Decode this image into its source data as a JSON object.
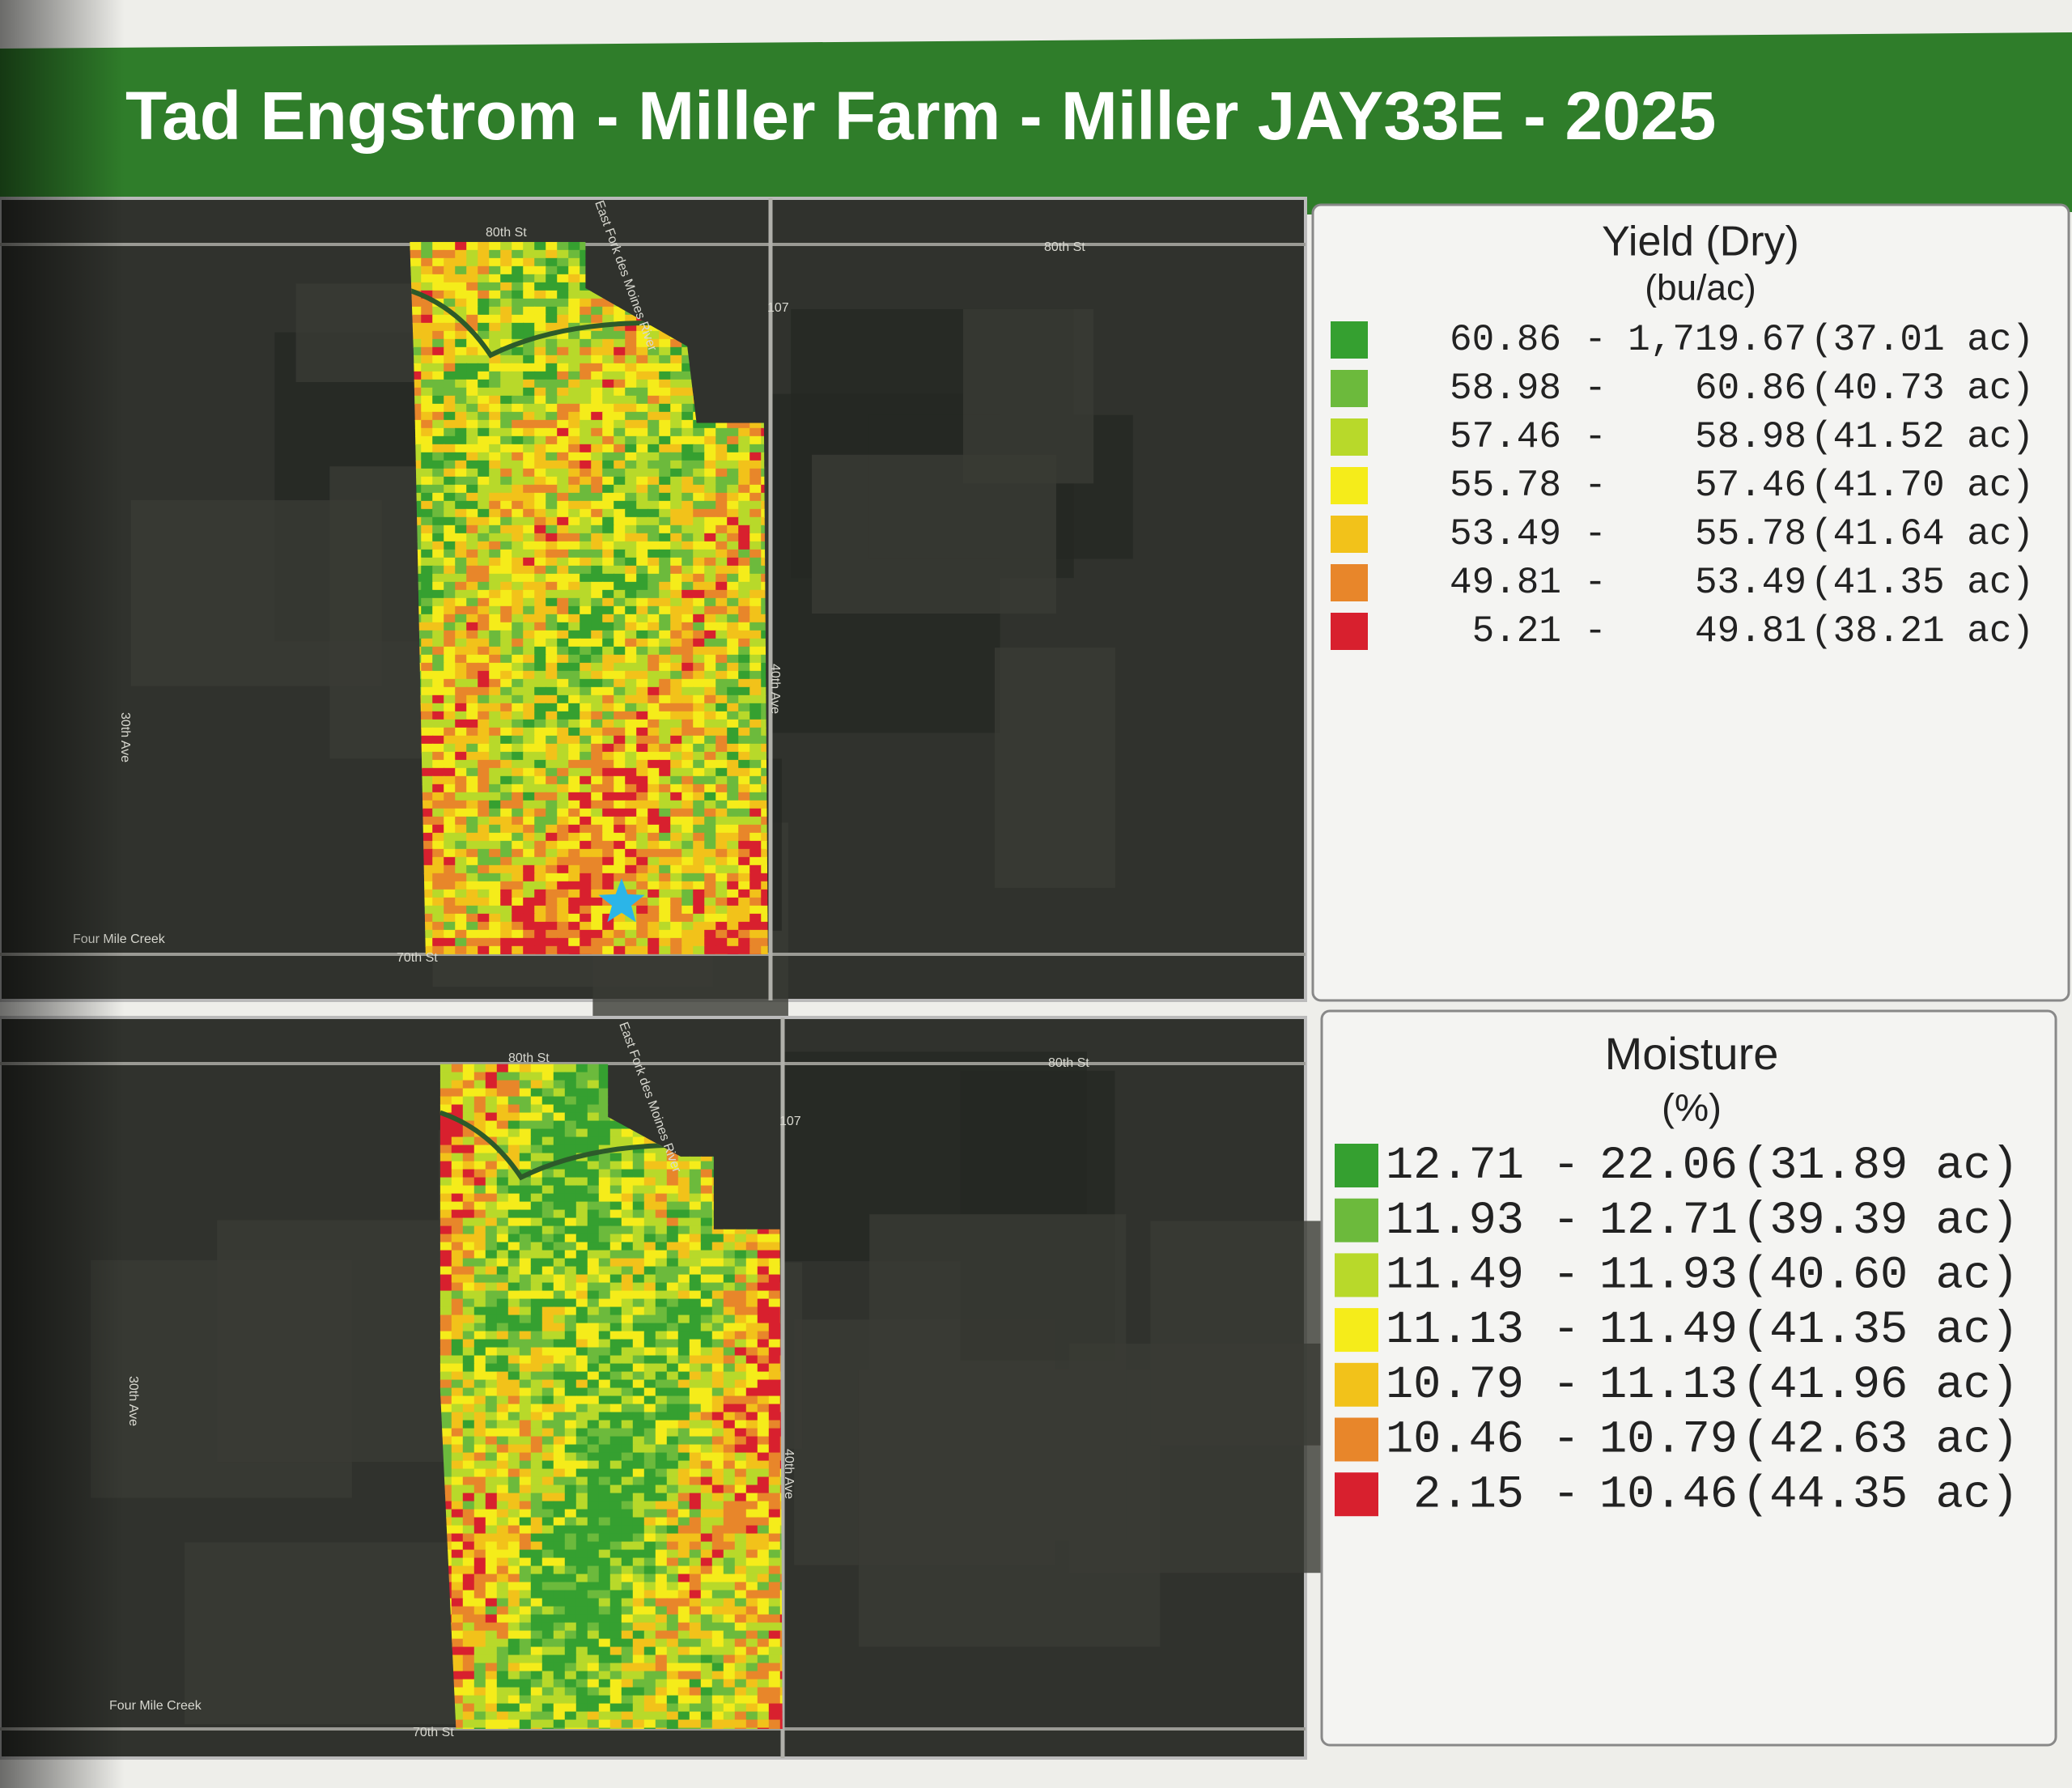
{
  "header": {
    "title": "Tad Engstrom - Miller Farm - Miller JAY33E - 2025"
  },
  "panels": [
    {
      "legend": {
        "title": "Yield (Dry)",
        "unit": "(bu/ac)",
        "rows": [
          {
            "color": "#35a030",
            "low": "60.86",
            "high": "1,719.67",
            "area": "(37.01 ac)"
          },
          {
            "color": "#6cba3c",
            "low": "58.98",
            "high": "60.86",
            "area": "(40.73 ac)"
          },
          {
            "color": "#b8d92a",
            "low": "57.46",
            "high": "58.98",
            "area": "(41.52 ac)"
          },
          {
            "color": "#f5ec1a",
            "low": "55.78",
            "high": "57.46",
            "area": "(41.70 ac)"
          },
          {
            "color": "#f2c21a",
            "low": "53.49",
            "high": "55.78",
            "area": "(41.64 ac)"
          },
          {
            "color": "#e8862a",
            "low": "49.81",
            "high": "53.49",
            "area": "(41.35 ac)"
          },
          {
            "color": "#d8202e",
            "low": "5.21",
            "high": "49.81",
            "area": "(38.21 ac)"
          }
        ]
      },
      "map_labels": [
        "80th St",
        "80th St",
        "107",
        "East Fork des Moines River",
        "70th St",
        "Four Mile Creek",
        "40th Ave",
        "30th Ave"
      ]
    },
    {
      "legend": {
        "title": "Moisture",
        "unit": "(%)",
        "rows": [
          {
            "color": "#35a030",
            "low": "12.71",
            "high": "22.06",
            "area": "(31.89 ac)"
          },
          {
            "color": "#6cba3c",
            "low": "11.93",
            "high": "12.71",
            "area": "(39.39 ac)"
          },
          {
            "color": "#b8d92a",
            "low": "11.49",
            "high": "11.93",
            "area": "(40.60 ac)"
          },
          {
            "color": "#f5ec1a",
            "low": "11.13",
            "high": "11.49",
            "area": "(41.35 ac)"
          },
          {
            "color": "#f2c21a",
            "low": "10.79",
            "high": "11.13",
            "area": "(41.96 ac)"
          },
          {
            "color": "#e8862a",
            "low": "10.46",
            "high": "10.79",
            "area": "(42.63 ac)"
          },
          {
            "color": "#d8202e",
            "low": "2.15",
            "high": "10.46",
            "area": "(44.35 ac)"
          }
        ]
      },
      "map_labels": [
        "80th St",
        "80th St",
        "107",
        "East Fork des Moines River",
        "70th St",
        "Four Mile Creek",
        "40th Ave",
        "30th Ave"
      ]
    }
  ]
}
